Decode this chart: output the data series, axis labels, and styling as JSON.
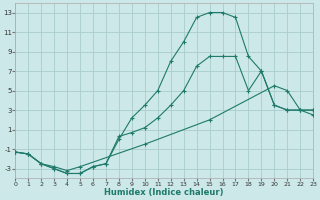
{
  "xlabel": "Humidex (Indice chaleur)",
  "background_color": "#cce8e8",
  "grid_color": "#aacccc",
  "line_color": "#1e7a6a",
  "xlim": [
    0,
    23
  ],
  "ylim": [
    -4,
    14
  ],
  "xticks": [
    0,
    1,
    2,
    3,
    4,
    5,
    6,
    7,
    8,
    9,
    10,
    11,
    12,
    13,
    14,
    15,
    16,
    17,
    18,
    19,
    20,
    21,
    22,
    23
  ],
  "yticks": [
    -3,
    -1,
    1,
    3,
    5,
    7,
    9,
    11,
    13
  ],
  "curve1_x": [
    0,
    1,
    2,
    3,
    4,
    5,
    6,
    7,
    8,
    9,
    10,
    11,
    12,
    13,
    14,
    15,
    16,
    17,
    18,
    19,
    20,
    21,
    22,
    23
  ],
  "curve1_y": [
    -1.3,
    -1.5,
    -2.5,
    -3.0,
    -3.5,
    -3.5,
    -2.8,
    -2.5,
    0.0,
    2.2,
    3.5,
    5.0,
    8.0,
    10.0,
    12.5,
    13.0,
    13.0,
    12.5,
    8.5,
    7.0,
    3.5,
    3.0,
    3.0,
    3.0
  ],
  "curve2_x": [
    0,
    1,
    2,
    3,
    4,
    5,
    6,
    7,
    8,
    9,
    10,
    11,
    12,
    13,
    14,
    15,
    16,
    17,
    18,
    19,
    20,
    21,
    22,
    23
  ],
  "curve2_y": [
    -1.3,
    -1.5,
    -2.5,
    -3.0,
    -3.5,
    -3.5,
    -2.8,
    -2.5,
    0.3,
    0.7,
    1.2,
    2.2,
    3.5,
    5.0,
    7.5,
    8.5,
    8.5,
    8.5,
    5.0,
    7.0,
    3.5,
    3.0,
    3.0,
    3.0
  ],
  "curve3_x": [
    0,
    1,
    2,
    3,
    4,
    5,
    10,
    15,
    20,
    21,
    22,
    23
  ],
  "curve3_y": [
    -1.3,
    -1.5,
    -2.5,
    -2.8,
    -3.2,
    -2.8,
    -0.5,
    2.0,
    5.5,
    5.0,
    3.0,
    2.5
  ]
}
